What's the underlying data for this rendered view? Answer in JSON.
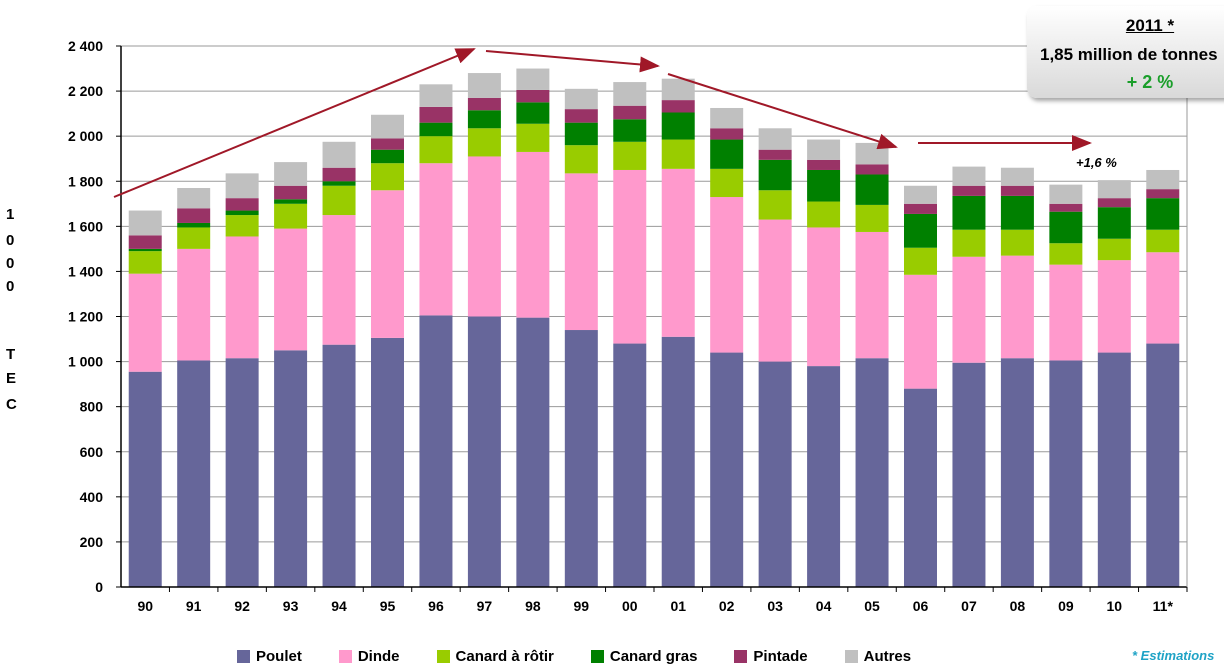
{
  "chart_data": {
    "type": "bar",
    "stacked": true,
    "categories": [
      "90",
      "91",
      "92",
      "93",
      "94",
      "95",
      "96",
      "97",
      "98",
      "99",
      "00",
      "01",
      "02",
      "03",
      "04",
      "05",
      "06",
      "07",
      "08",
      "09",
      "10",
      "11*"
    ],
    "series": [
      {
        "name": "Poulet",
        "color": "#66669a",
        "values": [
          955,
          1005,
          1015,
          1050,
          1075,
          1105,
          1205,
          1200,
          1195,
          1140,
          1080,
          1110,
          1040,
          1000,
          980,
          1015,
          880,
          995,
          1015,
          1005,
          1040,
          1080
        ]
      },
      {
        "name": "Dinde",
        "color": "#ff99cc",
        "values": [
          435,
          495,
          540,
          540,
          575,
          655,
          675,
          710,
          735,
          695,
          770,
          745,
          690,
          630,
          615,
          560,
          505,
          470,
          455,
          425,
          410,
          405
        ]
      },
      {
        "name": "Canard à rôtir",
        "color": "#99cc00",
        "values": [
          100,
          95,
          95,
          110,
          130,
          120,
          120,
          125,
          125,
          125,
          125,
          130,
          125,
          130,
          115,
          120,
          120,
          120,
          115,
          95,
          95,
          100
        ]
      },
      {
        "name": "Canard gras",
        "color": "#008000",
        "values": [
          10,
          20,
          20,
          20,
          20,
          60,
          60,
          80,
          95,
          100,
          100,
          120,
          130,
          135,
          140,
          135,
          150,
          150,
          150,
          140,
          140,
          140
        ]
      },
      {
        "name": "Pintade",
        "color": "#993366",
        "values": [
          60,
          65,
          55,
          60,
          60,
          50,
          70,
          55,
          55,
          60,
          60,
          55,
          50,
          45,
          45,
          45,
          45,
          45,
          45,
          35,
          40,
          40
        ]
      },
      {
        "name": "Autres",
        "color": "#c0c0c0",
        "values": [
          110,
          90,
          110,
          105,
          115,
          105,
          100,
          110,
          95,
          90,
          105,
          95,
          90,
          95,
          90,
          95,
          80,
          85,
          80,
          85,
          80,
          85
        ]
      }
    ],
    "ylim": [
      0,
      2400
    ],
    "yticks": [
      "0",
      "200",
      "400",
      "600",
      "800",
      "1 000",
      "1 200",
      "1 400",
      "1 600",
      "1 800",
      "2 000",
      "2 200",
      "2 400"
    ],
    "ylabel": "1000 TEC",
    "ylabel_letters": [
      "1",
      "0",
      "0",
      "0",
      "",
      "T",
      "E",
      "C"
    ],
    "grid": true,
    "legend_position": "bottom",
    "trend_arrow_color": "#a01828",
    "annotation": "+1,6 %",
    "note": "* Estimations"
  },
  "info_box": {
    "year": "2011 *",
    "production": "1,85 million de tonnes",
    "change": "+ 2 %"
  }
}
